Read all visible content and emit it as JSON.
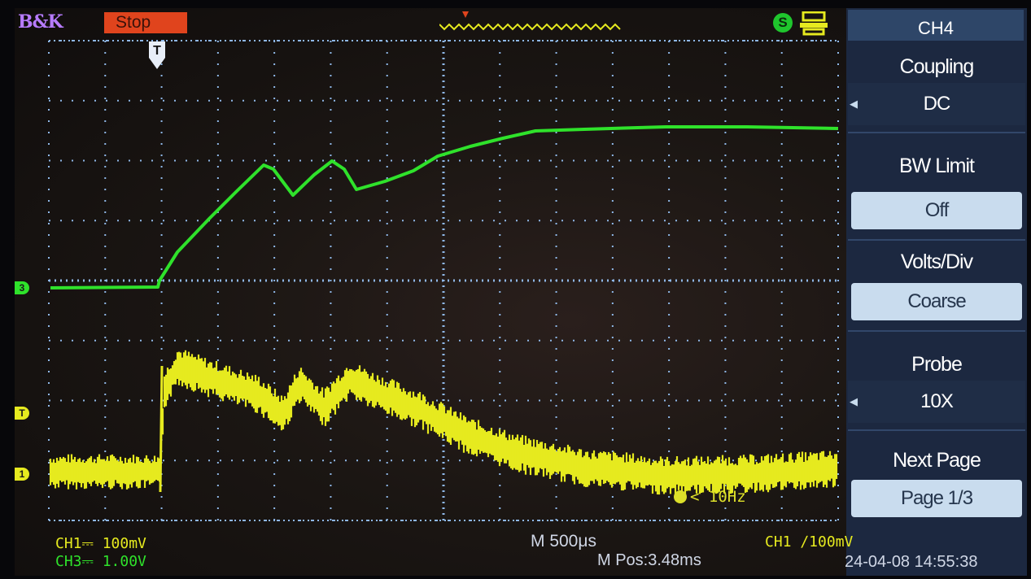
{
  "topbar": {
    "brand": "B&K",
    "status": "Stop"
  },
  "menu": {
    "title": "CH4",
    "coupling_label": "Coupling",
    "coupling_value": "DC",
    "bw_limit_label": "BW Limit",
    "bw_limit_value": "Off",
    "volts_div_label": "Volts/Div",
    "volts_div_value": "Coarse",
    "probe_label": "Probe",
    "probe_value": "10X",
    "next_page_label": "Next Page",
    "page_value": "Page 1/3"
  },
  "status": {
    "ch1_scale": "CH1⎓ 100mV",
    "ch3_scale": "CH3⎓ 1.00V",
    "timebase": "M 500μs",
    "mpos": "M Pos:3.48ms",
    "trigger": "CH1 ∕100mV",
    "datetime": "24-04-08 14:55:38",
    "freq": "< 10Hz"
  },
  "markers": {
    "trigger_top": "T",
    "ch3": "3",
    "trigger_level": "T",
    "ch1": "1"
  },
  "colors": {
    "ch1": "#e6ea1f",
    "ch3": "#2fe22b",
    "grid": "#8fb8e8",
    "menu_bg": "#1c2840",
    "status_red": "#e0441d"
  },
  "icons": [
    "trigger-position-icon",
    "s-icon",
    "usb-icon",
    "menu-arrow-icon"
  ]
}
